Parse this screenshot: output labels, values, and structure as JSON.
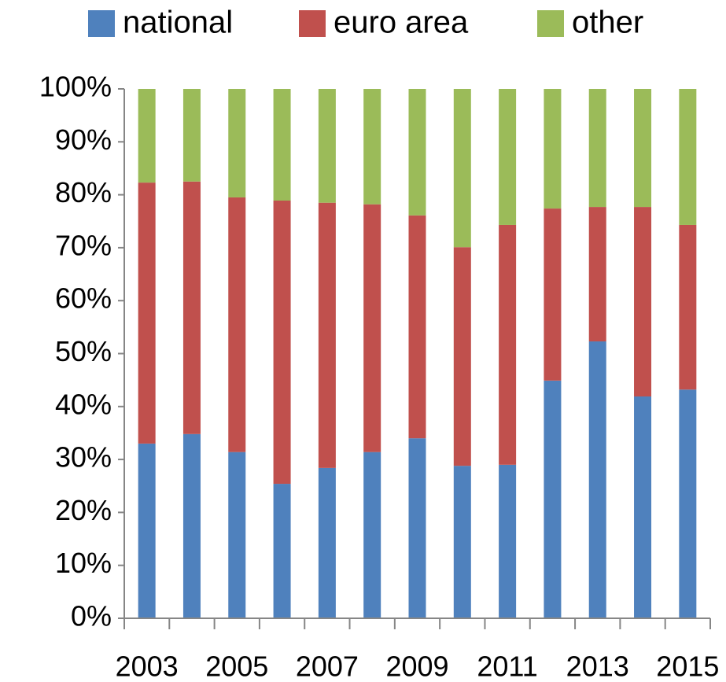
{
  "chart_data": {
    "type": "stacked_bar",
    "categories": [
      "2003",
      null,
      "2005",
      null,
      "2007",
      null,
      "2009",
      null,
      "2011",
      null,
      "2013",
      null,
      "2015"
    ],
    "series": [
      {
        "name": "national",
        "color": "#4f81bd",
        "values": [
          33.0,
          34.8,
          31.4,
          25.4,
          28.4,
          31.4,
          34.0,
          28.8,
          29.0,
          44.9,
          52.3,
          41.9,
          43.2
        ]
      },
      {
        "name": "euro area",
        "color": "#c0504d",
        "values": [
          49.3,
          47.7,
          48.1,
          53.5,
          50.1,
          46.8,
          42.1,
          41.3,
          45.3,
          32.5,
          25.4,
          35.8,
          31.1
        ]
      },
      {
        "name": "other",
        "color": "#9bbb59",
        "values": [
          17.7,
          17.5,
          20.5,
          21.1,
          21.5,
          21.8,
          23.9,
          29.9,
          25.7,
          22.6,
          22.3,
          22.3,
          25.7
        ]
      }
    ],
    "ylim": [
      0,
      100
    ],
    "yticks": [
      {
        "value": 0,
        "label": "0%"
      },
      {
        "value": 10,
        "label": "10%"
      },
      {
        "value": 20,
        "label": "20%"
      },
      {
        "value": 30,
        "label": "30%"
      },
      {
        "value": 40,
        "label": "40%"
      },
      {
        "value": 50,
        "label": "50%"
      },
      {
        "value": 60,
        "label": "60%"
      },
      {
        "value": 70,
        "label": "70%"
      },
      {
        "value": 80,
        "label": "80%"
      },
      {
        "value": 90,
        "label": "90%"
      },
      {
        "value": 100,
        "label": "100%"
      }
    ],
    "legend": "top",
    "grid": false
  }
}
